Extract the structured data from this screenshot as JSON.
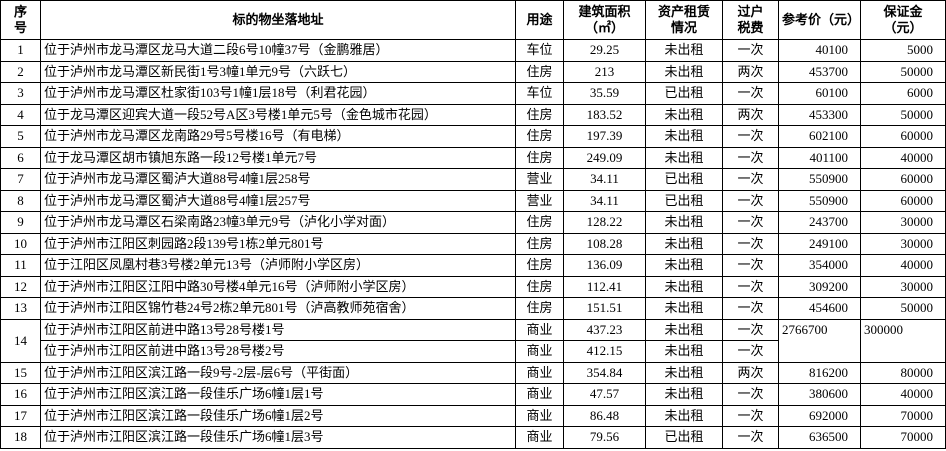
{
  "table": {
    "header": [
      "序\n号",
      "标的物坐落地址",
      "用途",
      "建筑面积\n（㎡）",
      "资产租赁\n情况",
      "过户\n税费",
      "参考价（元）",
      "保证金\n（元）"
    ],
    "rows": [
      {
        "no": "1",
        "address": "位于泸州市龙马潭区龙马大道二段6号10幢37号（金鹏雅居）",
        "use": "车位",
        "area": "29.25",
        "lease": "未出租",
        "tax": "一次",
        "price": "40100",
        "deposit": "5000"
      },
      {
        "no": "2",
        "address": "位于泸州市龙马潭区新民街1号3幢1单元9号（六跃七）",
        "use": "住房",
        "area": "213",
        "lease": "未出租",
        "tax": "两次",
        "price": "453700",
        "deposit": "50000"
      },
      {
        "no": "3",
        "address": "位于泸州市龙马潭区杜家街103号1幢1层18号（利君花园）",
        "use": "车位",
        "area": "35.59",
        "lease": "已出租",
        "tax": "一次",
        "price": "60100",
        "deposit": "6000"
      },
      {
        "no": "4",
        "address": "位于龙马潭区迎宾大道一段52号A区3号楼1单元5号（金色城市花园）",
        "use": "住房",
        "area": "183.52",
        "lease": "未出租",
        "tax": "两次",
        "price": "453300",
        "deposit": "50000"
      },
      {
        "no": "5",
        "address": "位于泸州市龙马潭区龙南路29号5号楼16号（有电梯）",
        "use": "住房",
        "area": "197.39",
        "lease": "未出租",
        "tax": "一次",
        "price": "602100",
        "deposit": "60000"
      },
      {
        "no": "6",
        "address": "位于龙马潭区胡市镇旭东路一段12号楼1单元7号",
        "use": "住房",
        "area": "249.09",
        "lease": "未出租",
        "tax": "一次",
        "price": "401100",
        "deposit": "40000"
      },
      {
        "no": "7",
        "address": "位于泸州市龙马潭区蜀泸大道88号4幢1层258号",
        "use": "营业",
        "area": "34.11",
        "lease": "已出租",
        "tax": "一次",
        "price": "550900",
        "deposit": "60000"
      },
      {
        "no": "8",
        "address": "位于泸州市龙马潭区蜀泸大道88号4幢1层257号",
        "use": "营业",
        "area": "34.11",
        "lease": "已出租",
        "tax": "一次",
        "price": "550900",
        "deposit": "60000"
      },
      {
        "no": "9",
        "address": "位于泸州市龙马潭区石梁南路23幢3单元9号（泸化小学对面）",
        "use": "住房",
        "area": "128.22",
        "lease": "未出租",
        "tax": "一次",
        "price": "243700",
        "deposit": "30000"
      },
      {
        "no": "10",
        "address": "位于泸州市江阳区刺园路2段139号1栋2单元801号",
        "use": "住房",
        "area": "108.28",
        "lease": "未出租",
        "tax": "一次",
        "price": "249100",
        "deposit": "30000"
      },
      {
        "no": "11",
        "address": "位于江阳区凤凰村巷3号楼2单元13号（泸师附小学区房）",
        "use": "住房",
        "area": "136.09",
        "lease": "未出租",
        "tax": "一次",
        "price": "354000",
        "deposit": "40000"
      },
      {
        "no": "12",
        "address": "位于泸州市江阳区江阳中路30号楼4单元16号（泸师附小学区房）",
        "use": "住房",
        "area": "112.41",
        "lease": "未出租",
        "tax": "一次",
        "price": "309200",
        "deposit": "30000"
      },
      {
        "no": "13",
        "address": "位于泸州市江阳区锦竹巷24号2栋2单元801号（泸高教师苑宿舍）",
        "use": "住房",
        "area": "151.51",
        "lease": "未出租",
        "tax": "一次",
        "price": "454600",
        "deposit": "50000"
      },
      {
        "no": "14",
        "units": [
          {
            "address": "位于泸州市江阳区前进中路13号28号楼1号",
            "use": "商业",
            "area": "437.23",
            "lease": "未出租",
            "tax": "一次"
          },
          {
            "address": "位于泸州市江阳区前进中路13号28号楼2号",
            "use": "商业",
            "area": "412.15",
            "lease": "未出租",
            "tax": "一次"
          }
        ],
        "price": "2766700",
        "deposit": "300000"
      },
      {
        "no": "15",
        "address": "位于泸州市江阳区滨江路一段9号-2层-层6号（平街面）",
        "use": "商业",
        "area": "354.84",
        "lease": "未出租",
        "tax": "两次",
        "price": "816200",
        "deposit": "80000"
      },
      {
        "no": "16",
        "address": "位于泸州市江阳区滨江路一段佳乐广场6幢1层1号",
        "use": "商业",
        "area": "47.57",
        "lease": "未出租",
        "tax": "一次",
        "price": "380600",
        "deposit": "40000"
      },
      {
        "no": "17",
        "address": "位于泸州市江阳区滨江路一段佳乐广场6幢1层2号",
        "use": "商业",
        "area": "86.48",
        "lease": "未出租",
        "tax": "一次",
        "price": "692000",
        "deposit": "70000"
      },
      {
        "no": "18",
        "address": "位于泸州市江阳区滨江路一段佳乐广场6幢1层3号",
        "use": "商业",
        "area": "79.56",
        "lease": "已出租",
        "tax": "一次",
        "price": "636500",
        "deposit": "70000"
      }
    ]
  }
}
